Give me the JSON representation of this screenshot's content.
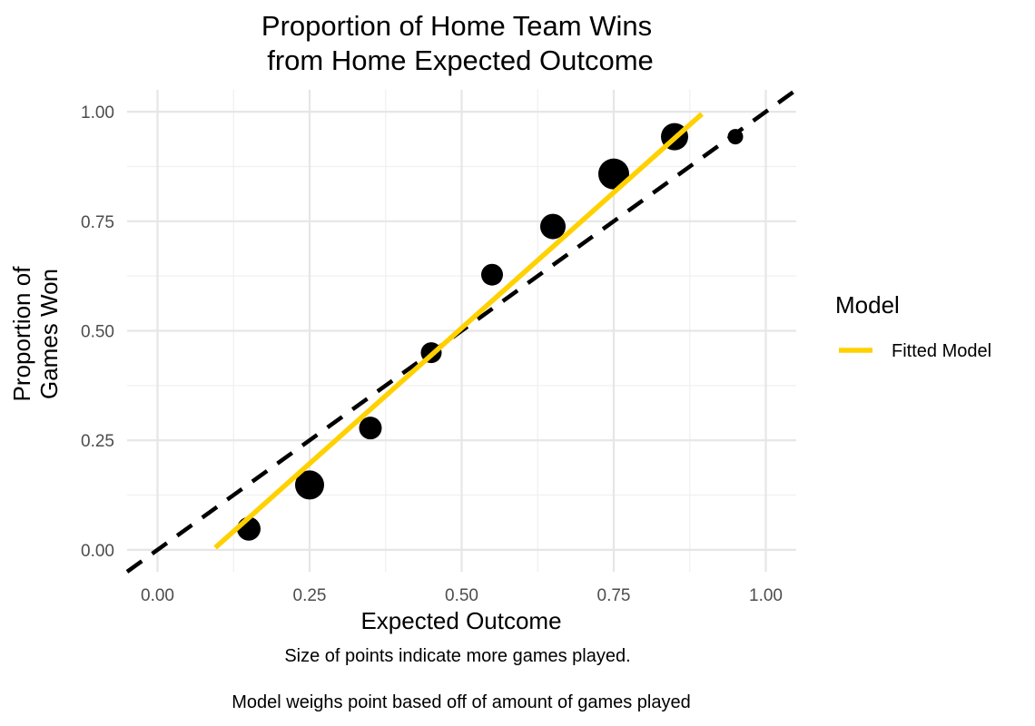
{
  "chart_data": {
    "type": "scatter",
    "title": [
      "Proportion of Home Team Wins",
      "from Home Expected Outcome"
    ],
    "xlabel": "Expected Outcome",
    "ylabel": [
      "Proportion of",
      "Games Won"
    ],
    "xlim": [
      -0.05,
      1.05
    ],
    "ylim": [
      -0.05,
      1.05
    ],
    "x_ticks": [
      0,
      0.25,
      0.5,
      0.75,
      1
    ],
    "x_tick_labels": [
      "0.00",
      "0.25",
      "0.50",
      "0.75",
      "1.00"
    ],
    "y_ticks": [
      0,
      0.25,
      0.5,
      0.75,
      1
    ],
    "y_tick_labels": [
      "0.00",
      "0.25",
      "0.50",
      "0.75",
      "1.00"
    ],
    "grid": true,
    "points": [
      {
        "x": 0.15,
        "y": 0.048,
        "size": 13
      },
      {
        "x": 0.25,
        "y": 0.148,
        "size": 16
      },
      {
        "x": 0.35,
        "y": 0.278,
        "size": 12.5
      },
      {
        "x": 0.45,
        "y": 0.45,
        "size": 11.5
      },
      {
        "x": 0.55,
        "y": 0.628,
        "size": 12
      },
      {
        "x": 0.65,
        "y": 0.738,
        "size": 14
      },
      {
        "x": 0.75,
        "y": 0.858,
        "size": 17
      },
      {
        "x": 0.85,
        "y": 0.943,
        "size": 15
      },
      {
        "x": 0.95,
        "y": 0.943,
        "size": 8.5
      }
    ],
    "reference_line": {
      "x": [
        -0.05,
        1.05
      ],
      "y": [
        -0.05,
        1.05
      ],
      "style": "dashed",
      "color": "#000000"
    },
    "fitted_line": {
      "name": "Fitted Model",
      "x": [
        0.095,
        0.895
      ],
      "y": [
        0.005,
        0.995
      ],
      "color": "#FFD100"
    },
    "legend": {
      "title": "Model",
      "entries": [
        "Fitted Model"
      ],
      "placement": "right"
    },
    "captions": [
      "Size of points indicate more games played.",
      "Model weighs point based off of amount of games played"
    ]
  }
}
